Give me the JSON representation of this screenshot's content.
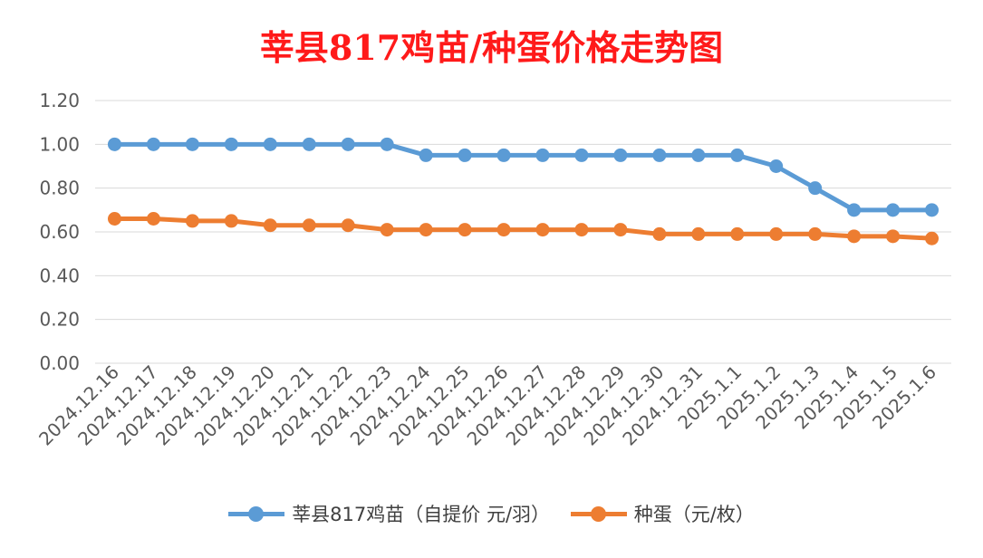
{
  "chart_data": {
    "type": "line",
    "title": "莘县817鸡苗/种蛋价格走势图",
    "categories": [
      "2024.12.16",
      "2024.12.17",
      "2024.12.18",
      "2024.12.19",
      "2024.12.20",
      "2024.12.21",
      "2024.12.22",
      "2024.12.23",
      "2024.12.24",
      "2024.12.25",
      "2024.12.26",
      "2024.12.27",
      "2024.12.28",
      "2024.12.29",
      "2024.12.30",
      "2024.12.31",
      "2025.1.1",
      "2025.1.2",
      "2025.1.3",
      "2025.1.4",
      "2025.1.5",
      "2025.1.6"
    ],
    "series": [
      {
        "name": "莘县817鸡苗（自提价 元/羽）",
        "color": "#5b9bd5",
        "values": [
          1.0,
          1.0,
          1.0,
          1.0,
          1.0,
          1.0,
          1.0,
          1.0,
          0.95,
          0.95,
          0.95,
          0.95,
          0.95,
          0.95,
          0.95,
          0.95,
          0.95,
          0.9,
          0.8,
          0.7,
          0.7,
          0.7
        ]
      },
      {
        "name": "种蛋（元/枚）",
        "color": "#ed7d31",
        "values": [
          0.66,
          0.66,
          0.65,
          0.65,
          0.63,
          0.63,
          0.63,
          0.61,
          0.61,
          0.61,
          0.61,
          0.61,
          0.61,
          0.61,
          0.59,
          0.59,
          0.59,
          0.59,
          0.59,
          0.58,
          0.58,
          0.57
        ]
      }
    ],
    "ylim": [
      0,
      1.2
    ],
    "yticks": [
      "0.00",
      "0.20",
      "0.40",
      "0.60",
      "0.80",
      "1.00",
      "1.20"
    ],
    "grid": true,
    "legend_position": "bottom"
  }
}
